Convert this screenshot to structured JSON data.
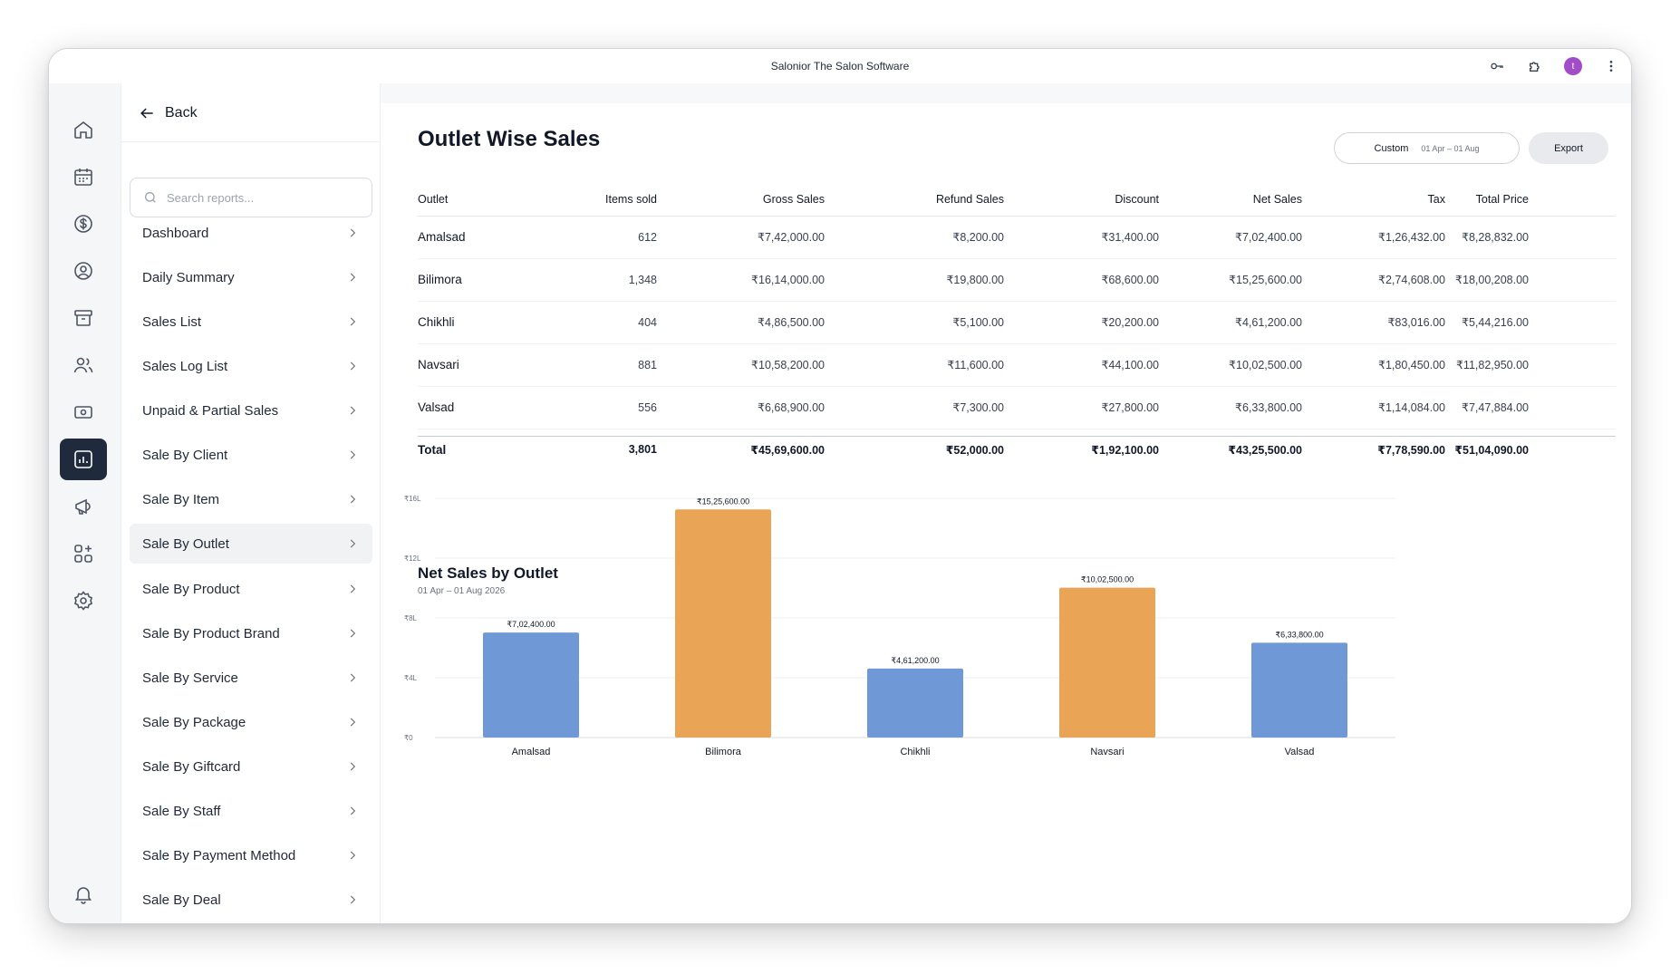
{
  "window": {
    "title": "Salonior The Salon Software",
    "avatar_initial": "t"
  },
  "colors": {
    "accent_dark": "#1f2b3d",
    "bar_blue": "#6f99d6",
    "bar_orange": "#e9a456",
    "avatar": "#a24cc8"
  },
  "rail": {
    "icons": [
      "home-icon",
      "calendar-icon",
      "dollar-icon",
      "user-circle-icon",
      "archive-icon",
      "users-icon",
      "cash-icon",
      "reports-icon",
      "megaphone-icon",
      "apps-icon",
      "settings-icon",
      "bell-icon"
    ],
    "active": "reports-icon"
  },
  "menu": {
    "back_label": "Back",
    "search_placeholder": "Search reports...",
    "items": [
      {
        "label": "Dashboard"
      },
      {
        "label": "Daily Summary"
      },
      {
        "label": "Sales List"
      },
      {
        "label": "Sales Log List"
      },
      {
        "label": "Unpaid & Partial Sales"
      },
      {
        "label": "Sale By Client"
      },
      {
        "label": "Sale By Item"
      },
      {
        "label": "Sale By Outlet"
      },
      {
        "label": "Sale By Product"
      },
      {
        "label": "Sale By Product Brand"
      },
      {
        "label": "Sale By Service"
      },
      {
        "label": "Sale By Package"
      },
      {
        "label": "Sale By Giftcard"
      },
      {
        "label": "Sale By Staff"
      },
      {
        "label": "Sale By Payment Method"
      },
      {
        "label": "Sale By Deal"
      }
    ],
    "active_item": "Sale By Outlet"
  },
  "page": {
    "title": "Outlet Wise Sales",
    "date_filter": {
      "label": "Custom",
      "range": "01 Apr – 01 Aug"
    },
    "export_label": "Export"
  },
  "table": {
    "columns": [
      "Outlet",
      "Items sold",
      "Gross Sales",
      "Refund Sales",
      "Discount",
      "Net Sales",
      "Tax",
      "Total Price"
    ],
    "rows": [
      [
        "Amalsad",
        "612",
        "₹7,42,000.00",
        "₹8,200.00",
        "₹31,400.00",
        "₹7,02,400.00",
        "₹1,26,432.00",
        "₹8,28,832.00"
      ],
      [
        "Bilimora",
        "1,348",
        "₹16,14,000.00",
        "₹19,800.00",
        "₹68,600.00",
        "₹15,25,600.00",
        "₹2,74,608.00",
        "₹18,00,208.00"
      ],
      [
        "Chikhli",
        "404",
        "₹4,86,500.00",
        "₹5,100.00",
        "₹20,200.00",
        "₹4,61,200.00",
        "₹83,016.00",
        "₹5,44,216.00"
      ],
      [
        "Navsari",
        "881",
        "₹10,58,200.00",
        "₹11,600.00",
        "₹44,100.00",
        "₹10,02,500.00",
        "₹1,80,450.00",
        "₹11,82,950.00"
      ],
      [
        "Valsad",
        "556",
        "₹6,68,900.00",
        "₹7,300.00",
        "₹27,800.00",
        "₹6,33,800.00",
        "₹1,14,084.00",
        "₹7,47,884.00"
      ]
    ],
    "total": [
      "Total",
      "3,801",
      "₹45,69,600.00",
      "₹52,000.00",
      "₹1,92,100.00",
      "₹43,25,500.00",
      "₹7,78,590.00",
      "₹51,04,090.00"
    ]
  },
  "chart_data": {
    "type": "bar",
    "title": "Net Sales by Outlet",
    "subtitle": "01 Apr – 01 Aug 2026",
    "categories": [
      "Amalsad",
      "Bilimora",
      "Chikhli",
      "Navsari",
      "Valsad"
    ],
    "values": [
      702400,
      1525600,
      461200,
      1002500,
      633800
    ],
    "value_labels": [
      "₹7,02,400.00",
      "₹15,25,600.00",
      "₹4,61,200.00",
      "₹10,02,500.00",
      "₹6,33,800.00"
    ],
    "bar_colors": [
      "#6f99d6",
      "#e9a456",
      "#6f99d6",
      "#e9a456",
      "#6f99d6"
    ],
    "yticks": [
      0,
      400000,
      800000,
      1200000,
      1600000
    ],
    "ytick_labels": [
      "₹0",
      "₹4L",
      "₹8L",
      "₹12L",
      "₹16L"
    ],
    "ylim": [
      0,
      1600000
    ],
    "grid": true
  }
}
